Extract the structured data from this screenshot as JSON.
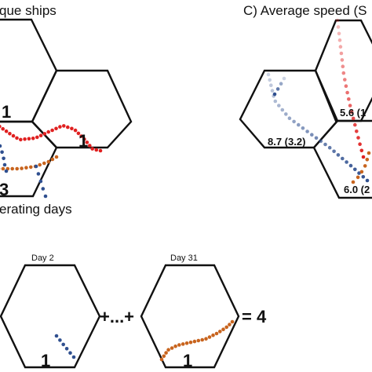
{
  "panel_b": {
    "title": "que ships",
    "counts": {
      "upper_left": "1",
      "middle": "1",
      "lower": "3"
    }
  },
  "panel_c": {
    "title": "C) Average speed (S",
    "values": {
      "right": "5.6 (1",
      "left": "8.7 (3.2)",
      "lower": "6.0 (2"
    }
  },
  "panel_d": {
    "title": "erating days",
    "day_a_label": "Day 2",
    "day_b_label": "Day 31",
    "day_a_count": "1",
    "day_b_count": "1",
    "ellipsis": "+...+",
    "result": "= 4"
  },
  "colors": {
    "red_track": "#e02020",
    "blue_track": "#2f4f8f",
    "orange_track": "#c8641e",
    "outline": "#111111"
  }
}
